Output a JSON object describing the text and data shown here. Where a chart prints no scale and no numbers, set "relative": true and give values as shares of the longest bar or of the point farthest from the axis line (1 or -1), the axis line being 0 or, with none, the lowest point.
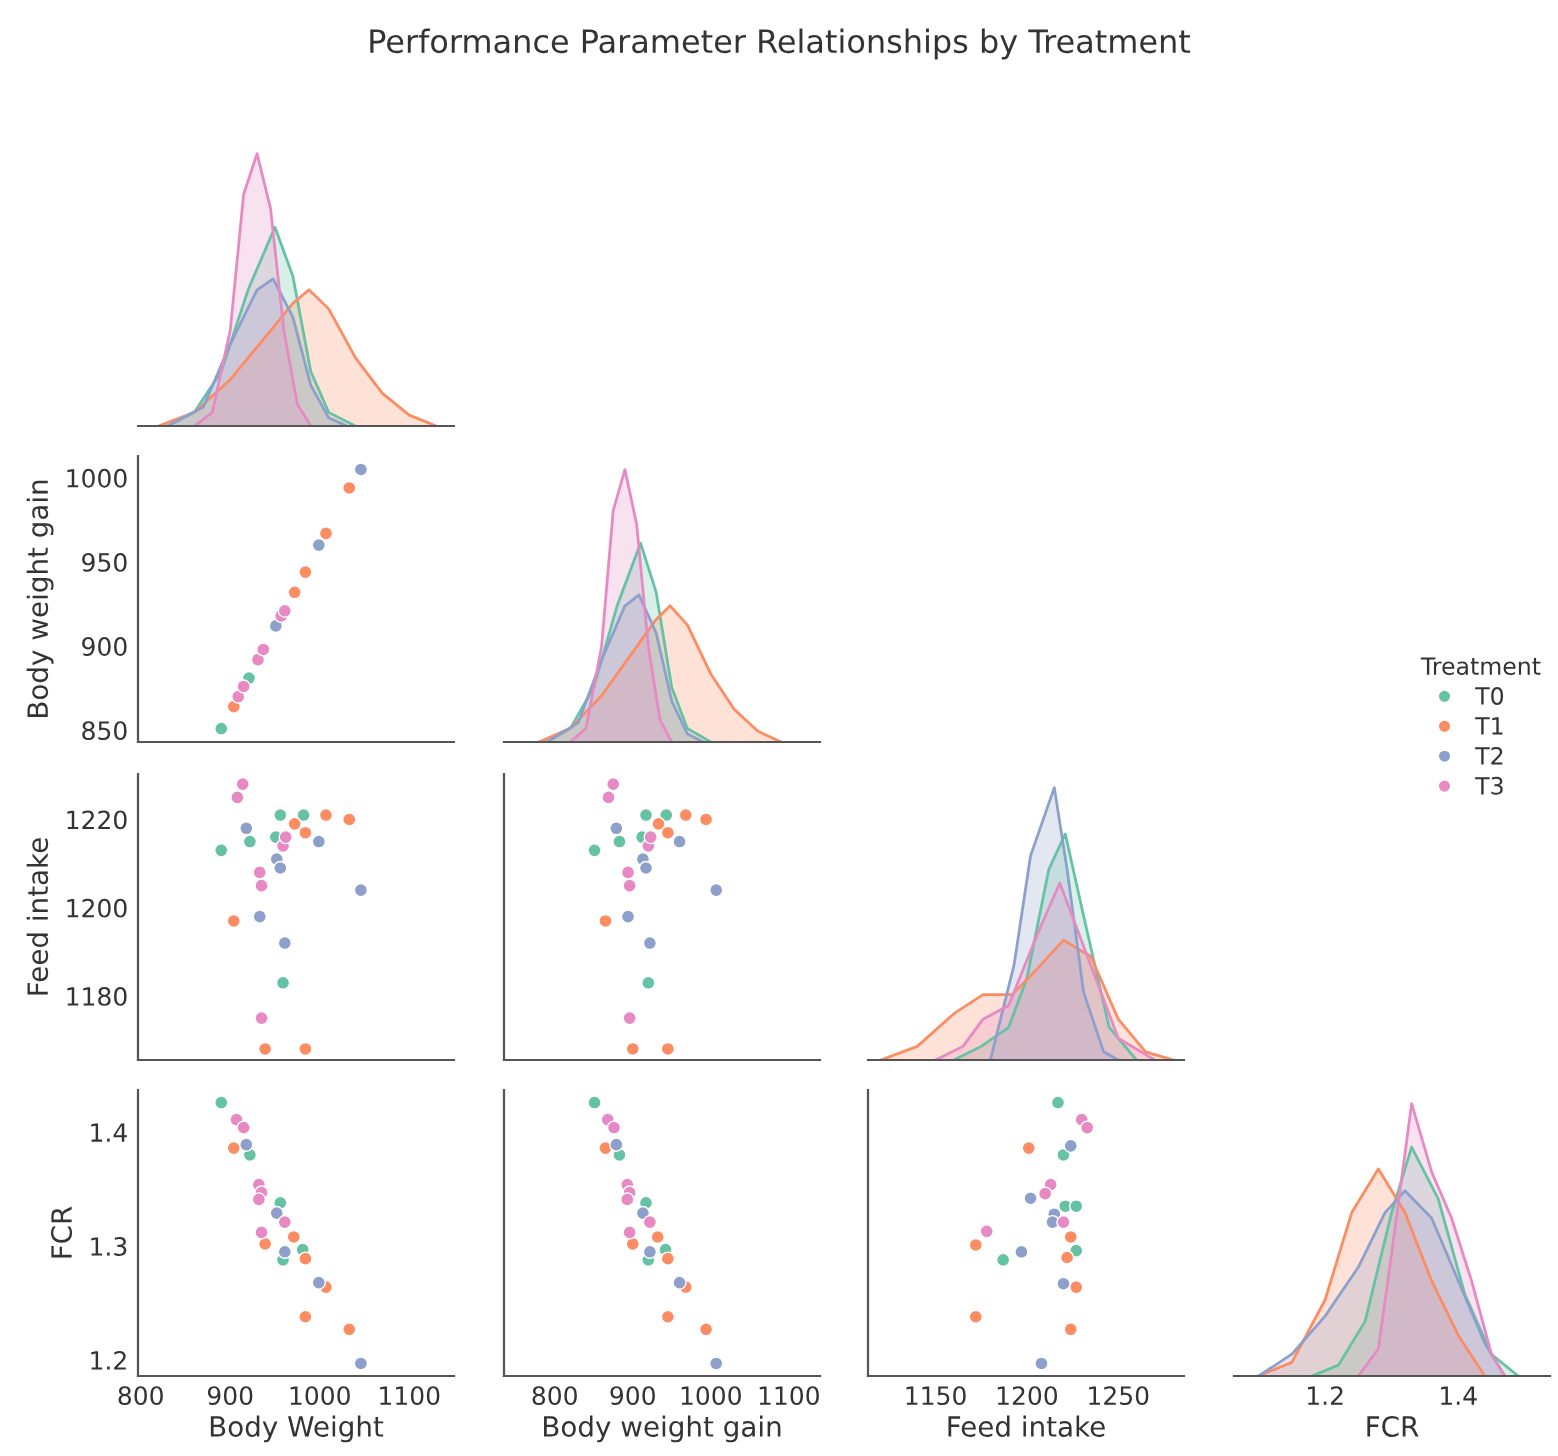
{
  "chart_data": [
    {
      "type": "area",
      "title": "Performance Parameter Relationships by Treatment",
      "relative": true,
      "xlim": [
        797,
        1150
      ],
      "tick_labels": false,
      "legend": "right",
      "legend_title": "Treatment",
      "series": [
        {
          "name": "T0",
          "color": "#66c2a5",
          "x": [
            830,
            860,
            890,
            920,
            950,
            970,
            990,
            1010,
            1040
          ],
          "values": [
            0,
            0.05,
            0.2,
            0.5,
            0.73,
            0.55,
            0.2,
            0.05,
            0
          ]
        },
        {
          "name": "T1",
          "color": "#fc8d62",
          "x": [
            820,
            860,
            900,
            940,
            970,
            988,
            1010,
            1040,
            1070,
            1100,
            1130
          ],
          "values": [
            0,
            0.05,
            0.17,
            0.33,
            0.45,
            0.5,
            0.43,
            0.25,
            0.12,
            0.04,
            0
          ]
        },
        {
          "name": "T2",
          "color": "#8da0cb",
          "x": [
            830,
            870,
            900,
            930,
            948,
            970,
            990,
            1010,
            1030
          ],
          "values": [
            0,
            0.07,
            0.3,
            0.5,
            0.54,
            0.4,
            0.15,
            0.03,
            0
          ]
        },
        {
          "name": "T3",
          "color": "#e78ac3",
          "x": [
            860,
            880,
            900,
            915,
            930,
            945,
            960,
            975,
            990
          ],
          "values": [
            0,
            0.05,
            0.35,
            0.85,
            1.0,
            0.8,
            0.35,
            0.08,
            0
          ]
        }
      ]
    },
    {
      "type": "scatter",
      "ylabel": "Body weight gain",
      "marker": "circle",
      "xlim": [
        797,
        1150
      ],
      "ylim": [
        843,
        1013
      ],
      "yticks": [
        850,
        900,
        950,
        1000
      ],
      "tick_labels": "y",
      "series": [
        {
          "color": "#66c2a5",
          "x": [
            890,
            921
          ],
          "values": [
            851,
            881
          ]
        },
        {
          "color": "#fc8d62",
          "x": [
            904,
            972,
            984,
            1007,
            1033
          ],
          "values": [
            864,
            932,
            944,
            967,
            994
          ]
        },
        {
          "color": "#8da0cb",
          "x": [
            951,
            999,
            1046
          ],
          "values": [
            912,
            960,
            1005
          ]
        },
        {
          "color": "#e78ac3",
          "x": [
            909,
            915,
            931,
            937,
            957,
            961
          ],
          "values": [
            870,
            876,
            892,
            898,
            918,
            921
          ]
        }
      ]
    },
    {
      "type": "area",
      "relative": true,
      "xlim": [
        735,
        1140
      ],
      "tick_labels": false,
      "series": [
        {
          "color": "#66c2a5",
          "x": [
            790,
            820,
            850,
            880,
            910,
            930,
            950,
            970,
            1000
          ],
          "values": [
            0,
            0.05,
            0.2,
            0.5,
            0.73,
            0.55,
            0.2,
            0.05,
            0
          ]
        },
        {
          "color": "#fc8d62",
          "x": [
            780,
            820,
            860,
            900,
            930,
            948,
            970,
            1000,
            1030,
            1060,
            1090
          ],
          "values": [
            0,
            0.05,
            0.17,
            0.33,
            0.45,
            0.5,
            0.43,
            0.25,
            0.12,
            0.04,
            0
          ]
        },
        {
          "color": "#8da0cb",
          "x": [
            790,
            830,
            860,
            890,
            908,
            930,
            950,
            970,
            990
          ],
          "values": [
            0,
            0.07,
            0.3,
            0.5,
            0.54,
            0.4,
            0.15,
            0.03,
            0
          ]
        },
        {
          "color": "#e78ac3",
          "x": [
            820,
            840,
            860,
            875,
            890,
            905,
            920,
            935,
            950
          ],
          "values": [
            0,
            0.05,
            0.35,
            0.85,
            1.0,
            0.8,
            0.35,
            0.08,
            0
          ]
        }
      ]
    },
    {
      "type": "scatter",
      "ylabel": "Feed intake",
      "marker": "circle",
      "xlim": [
        797,
        1150
      ],
      "ylim": [
        1165.5,
        1230.3
      ],
      "yticks": [
        1180,
        1200,
        1220
      ],
      "tick_labels": "y",
      "series": [
        {
          "color": "#66c2a5",
          "x": [
            890,
            922,
            951,
            956,
            959,
            982
          ],
          "values": [
            1213,
            1215,
            1216,
            1221,
            1183,
            1221
          ]
        },
        {
          "color": "#fc8d62",
          "x": [
            904,
            939,
            972,
            984,
            984,
            1007,
            1033
          ],
          "values": [
            1197,
            1168,
            1219,
            1217,
            1168,
            1221,
            1220
          ]
        },
        {
          "color": "#8da0cb",
          "x": [
            918,
            933,
            952,
            956,
            961,
            999,
            1046
          ],
          "values": [
            1218,
            1198,
            1211,
            1209,
            1192,
            1215,
            1204
          ]
        },
        {
          "color": "#e78ac3",
          "x": [
            908,
            914,
            933,
            935,
            935,
            959,
            962
          ],
          "values": [
            1225,
            1228,
            1208,
            1205,
            1175,
            1214,
            1216
          ]
        }
      ]
    },
    {
      "type": "scatter",
      "marker": "circle",
      "xlim": [
        735,
        1140
      ],
      "ylim": [
        1165.5,
        1230.3
      ],
      "tick_labels": false,
      "series": [
        {
          "color": "#66c2a5",
          "x": [
            851,
            883,
            912,
            917,
            920,
            943
          ],
          "values": [
            1213,
            1215,
            1216,
            1221,
            1183,
            1221
          ]
        },
        {
          "color": "#fc8d62",
          "x": [
            865,
            900,
            933,
            945,
            945,
            968,
            994
          ],
          "values": [
            1197,
            1168,
            1219,
            1217,
            1168,
            1221,
            1220
          ]
        },
        {
          "color": "#8da0cb",
          "x": [
            879,
            894,
            913,
            917,
            922,
            960,
            1007
          ],
          "values": [
            1218,
            1198,
            1211,
            1209,
            1192,
            1215,
            1204
          ]
        },
        {
          "color": "#e78ac3",
          "x": [
            869,
            875,
            894,
            896,
            896,
            920,
            923
          ],
          "values": [
            1225,
            1228,
            1208,
            1205,
            1175,
            1214,
            1216
          ]
        }
      ]
    },
    {
      "type": "area",
      "relative": true,
      "xlim": [
        1113,
        1286
      ],
      "tick_labels": false,
      "series": [
        {
          "color": "#66c2a5",
          "x": [
            1160,
            1175,
            1190,
            1200,
            1212,
            1221,
            1232,
            1245,
            1260
          ],
          "values": [
            0,
            0.05,
            0.12,
            0.3,
            0.7,
            0.83,
            0.5,
            0.12,
            0
          ]
        },
        {
          "color": "#fc8d62",
          "x": [
            1120,
            1140,
            1160,
            1176,
            1192,
            1205,
            1220,
            1235,
            1250,
            1265,
            1280
          ],
          "values": [
            0,
            0.05,
            0.17,
            0.24,
            0.24,
            0.33,
            0.44,
            0.38,
            0.15,
            0.03,
            0
          ]
        },
        {
          "color": "#8da0cb",
          "x": [
            1180,
            1193,
            1202,
            1215,
            1222,
            1231,
            1242,
            1250
          ],
          "values": [
            0,
            0.35,
            0.75,
            1.0,
            0.7,
            0.25,
            0.03,
            0
          ]
        },
        {
          "color": "#e78ac3",
          "x": [
            1150,
            1165,
            1176,
            1190,
            1205,
            1218,
            1232,
            1250,
            1270
          ],
          "values": [
            0,
            0.05,
            0.15,
            0.2,
            0.45,
            0.65,
            0.4,
            0.08,
            0
          ]
        }
      ]
    },
    {
      "type": "scatter",
      "xlabel": "Body Weight",
      "ylabel": "FCR",
      "marker": "circle",
      "xlim": [
        797,
        1150
      ],
      "ylim": [
        1.186,
        1.437
      ],
      "xticks": [
        800,
        900,
        1000,
        1100
      ],
      "yticks": [
        1.2,
        1.3,
        1.4
      ],
      "series": [
        {
          "color": "#66c2a5",
          "x": [
            890,
            922,
            956,
            959,
            981
          ],
          "values": [
            1.426,
            1.38,
            1.338,
            1.288,
            1.297
          ]
        },
        {
          "color": "#fc8d62",
          "x": [
            904,
            939,
            971,
            984,
            984,
            1007,
            1033
          ],
          "values": [
            1.386,
            1.302,
            1.308,
            1.289,
            1.238,
            1.264,
            1.227
          ]
        },
        {
          "color": "#8da0cb",
          "x": [
            918,
            952,
            961,
            999,
            1046
          ],
          "values": [
            1.389,
            1.329,
            1.295,
            1.268,
            1.197
          ]
        },
        {
          "color": "#e78ac3",
          "x": [
            907,
            915,
            932,
            935,
            932,
            961,
            935
          ],
          "values": [
            1.411,
            1.404,
            1.354,
            1.347,
            1.341,
            1.321,
            1.312
          ]
        }
      ]
    },
    {
      "type": "scatter",
      "xlabel": "Body weight gain",
      "marker": "circle",
      "xlim": [
        735,
        1140
      ],
      "ylim": [
        1.186,
        1.437
      ],
      "xticks": [
        800,
        900,
        1000,
        1100
      ],
      "tick_labels": "x",
      "series": [
        {
          "color": "#66c2a5",
          "x": [
            851,
            883,
            917,
            920,
            942
          ],
          "values": [
            1.426,
            1.38,
            1.338,
            1.288,
            1.297
          ]
        },
        {
          "color": "#fc8d62",
          "x": [
            865,
            900,
            932,
            945,
            945,
            968,
            994
          ],
          "values": [
            1.386,
            1.302,
            1.308,
            1.289,
            1.238,
            1.264,
            1.227
          ]
        },
        {
          "color": "#8da0cb",
          "x": [
            879,
            913,
            922,
            960,
            1007
          ],
          "values": [
            1.389,
            1.329,
            1.295,
            1.268,
            1.197
          ]
        },
        {
          "color": "#e78ac3",
          "x": [
            868,
            876,
            893,
            896,
            893,
            922,
            896
          ],
          "values": [
            1.411,
            1.404,
            1.354,
            1.347,
            1.341,
            1.321,
            1.312
          ]
        }
      ]
    },
    {
      "type": "scatter",
      "xlabel": "Feed intake",
      "marker": "circle",
      "xlim": [
        1113,
        1286
      ],
      "ylim": [
        1.186,
        1.437
      ],
      "xticks": [
        1150,
        1200,
        1250
      ],
      "tick_labels": "x",
      "series": [
        {
          "color": "#66c2a5",
          "x": [
            1217,
            1220,
            1221,
            1227,
            1187,
            1227
          ],
          "values": [
            1.426,
            1.38,
            1.335,
            1.335,
            1.288,
            1.296
          ]
        },
        {
          "color": "#fc8d62",
          "x": [
            1201,
            1172,
            1224,
            1222,
            1227,
            1172,
            1224
          ],
          "values": [
            1.386,
            1.301,
            1.308,
            1.29,
            1.264,
            1.238,
            1.227
          ]
        },
        {
          "color": "#8da0cb",
          "x": [
            1224,
            1202,
            1215,
            1214,
            1197,
            1220,
            1208
          ],
          "values": [
            1.388,
            1.342,
            1.328,
            1.321,
            1.295,
            1.267,
            1.197
          ]
        },
        {
          "color": "#e78ac3",
          "x": [
            1230,
            1233,
            1213,
            1210,
            1220,
            1178
          ],
          "values": [
            1.411,
            1.404,
            1.354,
            1.346,
            1.321,
            1.313
          ]
        }
      ]
    },
    {
      "type": "area",
      "xlabel": "FCR",
      "relative": true,
      "xlim": [
        1.063,
        1.538
      ],
      "xticks": [
        1.2,
        1.4
      ],
      "tick_labels": "x",
      "series": [
        {
          "color": "#66c2a5",
          "x": [
            1.18,
            1.22,
            1.26,
            1.3,
            1.33,
            1.37,
            1.41,
            1.45,
            1.49
          ],
          "values": [
            0,
            0.04,
            0.2,
            0.6,
            0.84,
            0.65,
            0.3,
            0.08,
            0
          ]
        },
        {
          "color": "#fc8d62",
          "x": [
            1.1,
            1.15,
            1.2,
            1.24,
            1.28,
            1.32,
            1.36,
            1.4,
            1.44
          ],
          "values": [
            0,
            0.05,
            0.28,
            0.6,
            0.76,
            0.6,
            0.35,
            0.15,
            0
          ]
        },
        {
          "color": "#8da0cb",
          "x": [
            1.1,
            1.15,
            1.2,
            1.25,
            1.29,
            1.32,
            1.36,
            1.4,
            1.44,
            1.47
          ],
          "values": [
            0,
            0.08,
            0.22,
            0.4,
            0.6,
            0.68,
            0.58,
            0.35,
            0.12,
            0
          ]
        },
        {
          "color": "#e78ac3",
          "x": [
            1.25,
            1.28,
            1.3,
            1.33,
            1.36,
            1.39,
            1.42,
            1.45,
            1.47
          ],
          "values": [
            0,
            0.1,
            0.45,
            1.0,
            0.75,
            0.58,
            0.35,
            0.08,
            0
          ]
        }
      ]
    }
  ]
}
